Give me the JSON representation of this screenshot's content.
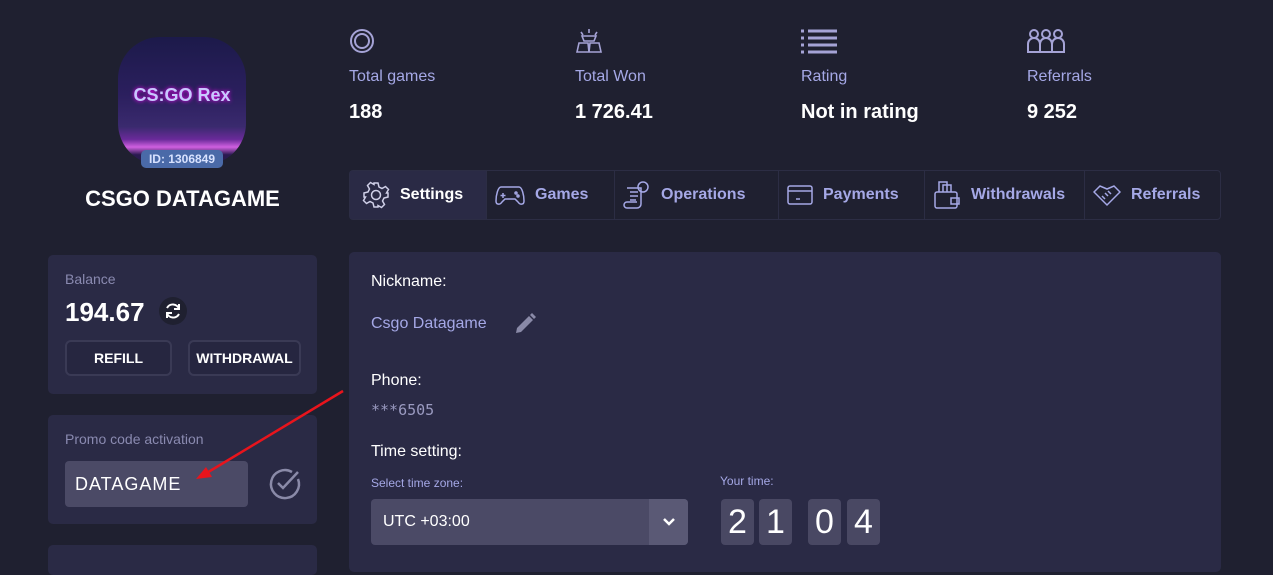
{
  "profile": {
    "logo_text": "CS:GO Rex",
    "id_badge": "ID: 1306849",
    "name": "CSGO DATAGAME"
  },
  "stats": [
    {
      "icon": "chip-icon",
      "label": "Total games",
      "value": "188"
    },
    {
      "icon": "gold-bars-icon",
      "label": "Total Won",
      "value": "1 726.41"
    },
    {
      "icon": "list-icon",
      "label": "Rating",
      "value": "Not in rating"
    },
    {
      "icon": "people-icon",
      "label": "Referrals",
      "value": "9 252"
    }
  ],
  "tabs": [
    {
      "label": "Settings",
      "icon": "gear-icon",
      "active": true
    },
    {
      "label": "Games",
      "icon": "gamepad-icon"
    },
    {
      "label": "Operations",
      "icon": "receipt-icon"
    },
    {
      "label": "Payments",
      "icon": "card-icon"
    },
    {
      "label": "Withdrawals",
      "icon": "wallet-icon"
    },
    {
      "label": "Referrals",
      "icon": "handshake-icon"
    }
  ],
  "balance": {
    "label": "Balance",
    "value": "194.67",
    "refill": "REFILL",
    "withdrawal": "WITHDRAWAL"
  },
  "promo": {
    "label": "Promo code activation",
    "value": "DATAGAME"
  },
  "settings": {
    "nickname_label": "Nickname:",
    "nickname": "Csgo Datagame",
    "phone_label": "Phone:",
    "phone": "***6505",
    "time_label": "Time setting:",
    "tz_label": "Select time zone:",
    "tz_value": "UTC +03:00",
    "your_time_label": "Your time:",
    "time_digits": [
      "2",
      "1",
      "0",
      "4"
    ]
  },
  "colors": {
    "bg": "#1f2030",
    "panel": "#2a2a45",
    "accent_text": "#a5a8e6",
    "annotation_arrow": "#e8141c"
  }
}
